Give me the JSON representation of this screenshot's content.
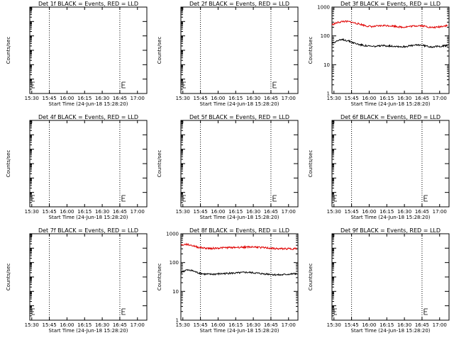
{
  "colors": {
    "events": "#000000",
    "lld": "#e00000",
    "axis": "#000000",
    "background": "#ffffff"
  },
  "x_tick_labels": [
    "15:30",
    "15:45",
    "16:00",
    "16:15",
    "16:30",
    "16:45",
    "17:00"
  ],
  "x_axis_label": "Start Time (24-Jun-18 15:28:20)",
  "y_axis_label": "Counts/sec",
  "chart_data": [
    {
      "type": "line",
      "detector": "1f",
      "title": "Det 1f BLACK = Events, RED = LLD",
      "scale": "log-empty",
      "xlim": [
        "15:28:20",
        "17:08:00"
      ],
      "dotted_lines": [
        "15:45",
        "16:45"
      ],
      "has_data": false,
      "series": []
    },
    {
      "type": "line",
      "detector": "2f",
      "title": "Det 2f BLACK = Events, RED = LLD",
      "scale": "log-empty",
      "xlim": [
        "15:28:20",
        "17:08:00"
      ],
      "dotted_lines": [
        "15:45",
        "16:45"
      ],
      "has_data": false,
      "series": []
    },
    {
      "type": "line",
      "detector": "3f",
      "title": "Det 3f BLACK = Events, RED = LLD",
      "scale": "log",
      "ylim": [
        1,
        1000
      ],
      "yticks": [
        "1",
        "10",
        "100",
        "1000"
      ],
      "xlim": [
        "15:28:20",
        "17:08:00"
      ],
      "dotted_lines": [
        "15:45",
        "16:45"
      ],
      "has_data": true,
      "series": [
        {
          "color": "lld",
          "x": [
            "15:28",
            "15:33",
            "15:38",
            "15:43",
            "15:48",
            "15:53",
            "15:58",
            "16:03",
            "16:08",
            "16:13",
            "16:18",
            "16:23",
            "16:28",
            "16:33",
            "16:38",
            "16:43",
            "16:48",
            "16:53",
            "16:58",
            "17:03",
            "17:07"
          ],
          "values": [
            240,
            290,
            320,
            310,
            280,
            250,
            220,
            210,
            220,
            230,
            225,
            215,
            200,
            210,
            220,
            230,
            215,
            195,
            200,
            220,
            230
          ]
        },
        {
          "color": "events",
          "x": [
            "15:28",
            "15:33",
            "15:38",
            "15:43",
            "15:48",
            "15:53",
            "15:58",
            "16:03",
            "16:08",
            "16:13",
            "16:18",
            "16:23",
            "16:28",
            "16:33",
            "16:38",
            "16:43",
            "16:48",
            "16:53",
            "16:58",
            "17:03",
            "17:07"
          ],
          "values": [
            55,
            68,
            74,
            66,
            55,
            49,
            45,
            43,
            44,
            46,
            45,
            44,
            42,
            44,
            47,
            49,
            45,
            42,
            43,
            45,
            47
          ]
        }
      ]
    },
    {
      "type": "line",
      "detector": "4f",
      "title": "Det 4f BLACK = Events, RED = LLD",
      "scale": "log-empty",
      "xlim": [
        "15:28:20",
        "17:08:00"
      ],
      "dotted_lines": [
        "15:45",
        "16:45"
      ],
      "has_data": false,
      "series": []
    },
    {
      "type": "line",
      "detector": "5f",
      "title": "Det 5f BLACK = Events, RED = LLD",
      "scale": "log-empty",
      "xlim": [
        "15:28:20",
        "17:08:00"
      ],
      "dotted_lines": [
        "15:45",
        "16:45"
      ],
      "has_data": false,
      "series": []
    },
    {
      "type": "line",
      "detector": "6f",
      "title": "Det 6f BLACK = Events, RED = LLD",
      "scale": "log-empty",
      "xlim": [
        "15:28:20",
        "17:08:00"
      ],
      "dotted_lines": [
        "15:45",
        "16:45"
      ],
      "has_data": false,
      "series": []
    },
    {
      "type": "line",
      "detector": "7f",
      "title": "Det 7f BLACK = Events, RED = LLD",
      "scale": "log-empty",
      "xlim": [
        "15:28:20",
        "17:08:00"
      ],
      "dotted_lines": [
        "15:45",
        "16:45"
      ],
      "has_data": false,
      "series": []
    },
    {
      "type": "line",
      "detector": "8f",
      "title": "Det 8f BLACK = Events, RED = LLD",
      "scale": "log",
      "ylim": [
        1,
        1000
      ],
      "yticks": [
        "1",
        "10",
        "100",
        "1000"
      ],
      "xlim": [
        "15:28:20",
        "17:08:00"
      ],
      "dotted_lines": [
        "15:45",
        "16:45"
      ],
      "has_data": true,
      "series": [
        {
          "color": "lld",
          "x": [
            "15:28",
            "15:33",
            "15:38",
            "15:43",
            "15:48",
            "15:53",
            "15:58",
            "16:03",
            "16:08",
            "16:13",
            "16:18",
            "16:23",
            "16:28",
            "16:33",
            "16:38",
            "16:43",
            "16:48",
            "16:53",
            "16:58",
            "17:03",
            "17:07"
          ],
          "values": [
            400,
            430,
            390,
            340,
            320,
            310,
            315,
            325,
            330,
            335,
            340,
            345,
            350,
            345,
            330,
            320,
            305,
            300,
            305,
            300,
            310
          ]
        },
        {
          "color": "events",
          "x": [
            "15:28",
            "15:33",
            "15:38",
            "15:43",
            "15:48",
            "15:53",
            "15:58",
            "16:03",
            "16:08",
            "16:13",
            "16:18",
            "16:23",
            "16:28",
            "16:33",
            "16:38",
            "16:43",
            "16:48",
            "16:53",
            "16:58",
            "17:03",
            "17:07"
          ],
          "values": [
            45,
            55,
            52,
            44,
            40,
            39,
            40,
            41,
            42,
            43,
            44,
            46,
            45,
            43,
            41,
            40,
            38,
            37,
            39,
            40,
            42
          ]
        }
      ]
    },
    {
      "type": "line",
      "detector": "9f",
      "title": "Det 9f BLACK = Events, RED = LLD",
      "scale": "log-empty",
      "xlim": [
        "15:28:20",
        "17:08:00"
      ],
      "dotted_lines": [
        "15:45",
        "16:45"
      ],
      "has_data": false,
      "series": []
    }
  ]
}
